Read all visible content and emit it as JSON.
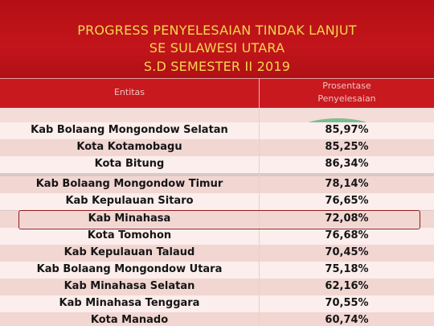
{
  "title": {
    "line1": "PROGRESS PENYELESAIAN TINDAK LANJUT",
    "line2": "SE SULAWESI UTARA",
    "line3": "S.D SEMESTER II 2019"
  },
  "table": {
    "headers": {
      "entity": "Entitas",
      "percent_line1": "Prosentase",
      "percent_line2": "Penyelesaian"
    },
    "rows": [
      {
        "name": "Kab Bolaang Mongondow Selatan",
        "value": "85,97%"
      },
      {
        "name": "Kota Kotamobagu",
        "value": "85,25%"
      },
      {
        "name": "Kota Bitung",
        "value": "86,34%"
      },
      {
        "name": "Kab Bolaang Mongondow Timur",
        "value": "78,14%"
      },
      {
        "name": "Kab Kepulauan Sitaro",
        "value": "76,65%"
      },
      {
        "name": "Kab Minahasa",
        "value": "72,08%"
      },
      {
        "name": "Kota Tomohon",
        "value": "76,68%"
      },
      {
        "name": "Kab Kepulauan Talaud",
        "value": "70,45%"
      },
      {
        "name": "Kab Bolaang Mongondow Utara",
        "value": "75,18%"
      },
      {
        "name": "Kab Minahasa Selatan",
        "value": "62,16%"
      },
      {
        "name": "Kab Minahasa Tenggara",
        "value": "70,55%"
      },
      {
        "name": "Kota Manado",
        "value": "60,74%"
      }
    ]
  },
  "colors": {
    "title_band": "#c2151b",
    "title_text": "#f4d64e",
    "highlight": "#34aa64",
    "outline": "#8c1d1d"
  }
}
